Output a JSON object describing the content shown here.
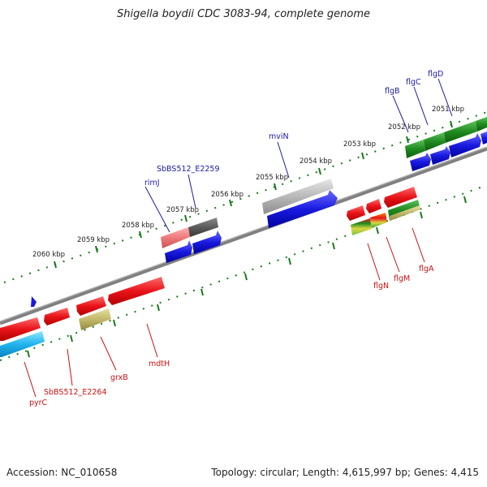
{
  "title": "Shigella boydii CDC 3083-94, complete genome",
  "footer": {
    "accession": "Accession: NC_010658",
    "topology": "Topology: circular; Length: 4,615,997 bp; Genes: 4,415"
  },
  "scale_labels": [
    "2060 kbp",
    "2059 kbp",
    "2058 kbp",
    "2057 kbp",
    "2056 kbp",
    "2055 kbp",
    "2054 kbp",
    "2053 kbp",
    "2052 kbp",
    "2051 kbp"
  ],
  "gene_labels_top": [
    "rimJ",
    "SbBS512_E2259",
    "mviN",
    "flgB",
    "flgC",
    "flgD"
  ],
  "gene_labels_bottom": [
    "pyrC",
    "SbBS512_E2264",
    "grxB",
    "mdtH",
    "flgN",
    "flgM",
    "flgA"
  ],
  "colors": {
    "forward_label": "#1a1aaa",
    "reverse_label": "#cc1111",
    "cds_red": "#e8141a",
    "cds_blue": "#1a1ae0",
    "cds_green": "#1f8a1f",
    "cds_gray": "#b9b9b9",
    "backbone": "#808080",
    "tick_green": "#1a7a1a"
  }
}
